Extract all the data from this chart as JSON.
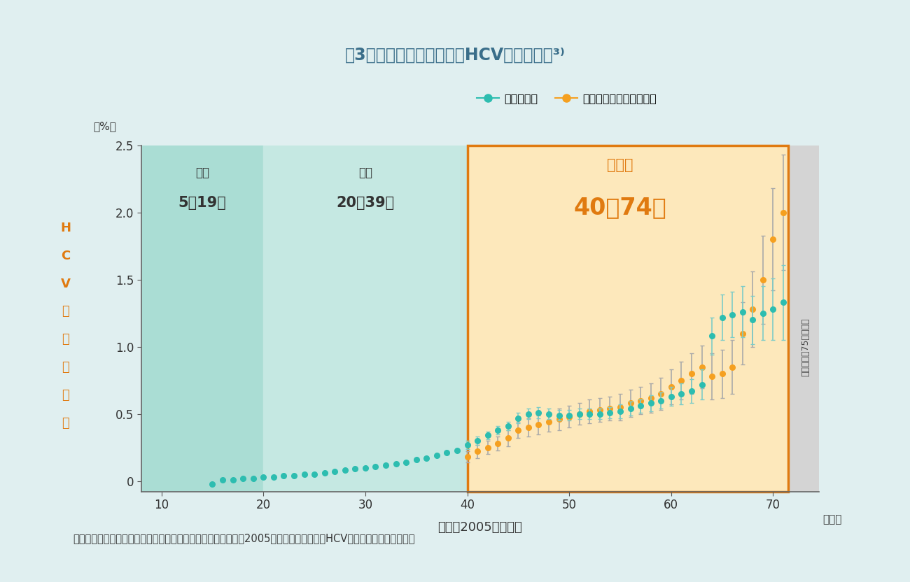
{
  "title": "図3：日本における年齢別HCV抗体陽性率³⁾",
  "xlabel": "年齢（2005年時点）",
  "ylabel_chars": [
    "H",
    "C",
    "V",
    "抗",
    "体",
    "陽",
    "性",
    "率"
  ],
  "ylabel_top": "（%）",
  "xlabel_right": "（歳）",
  "footnote": "方法：初回献血者の血液検査及び肝炎ウイルス検診結果から、2005年時点の各年齢別のHCV抗体陽性率を算出した。",
  "legend_label1": "初回献血者",
  "legend_label2": "肝炎ウイルス検診受診者",
  "background_color": "#e0eff0",
  "plot_bg_color": "#ffffff",
  "region1a_color": "#aaddd4",
  "region1b_color": "#c5e8e2",
  "region2_color": "#fde8bb",
  "region3_color": "#d4d4d4",
  "region1_label_top": "少年",
  "region1_label_bot": "5～19歳",
  "region2_label_top": "若年",
  "region2_label_bot": "20～39歳",
  "region3_label_top": "中高年",
  "region3_label_bot": "40～74歳",
  "region3_border_color": "#e07a10",
  "teal_color": "#2dbdb0",
  "orange_color": "#f5a020",
  "teal_err_color": "#7dccc8",
  "orange_err_color": "#aaaaaa",
  "teal_data_x": [
    15,
    16,
    17,
    18,
    19,
    20,
    21,
    22,
    23,
    24,
    25,
    26,
    27,
    28,
    29,
    30,
    31,
    32,
    33,
    34,
    35,
    36,
    37,
    38,
    39,
    40,
    41,
    42,
    43,
    44,
    45,
    46,
    47,
    48,
    49,
    50,
    51,
    52,
    53,
    54,
    55,
    56,
    57,
    58,
    59,
    60,
    61,
    62,
    63,
    64,
    65,
    66,
    67,
    68,
    69,
    70,
    71
  ],
  "teal_data_y": [
    -0.02,
    0.01,
    0.01,
    0.02,
    0.02,
    0.03,
    0.03,
    0.04,
    0.04,
    0.05,
    0.05,
    0.06,
    0.07,
    0.08,
    0.09,
    0.1,
    0.11,
    0.12,
    0.13,
    0.14,
    0.16,
    0.17,
    0.19,
    0.21,
    0.23,
    0.27,
    0.3,
    0.34,
    0.38,
    0.41,
    0.47,
    0.5,
    0.51,
    0.5,
    0.49,
    0.49,
    0.5,
    0.5,
    0.5,
    0.51,
    0.52,
    0.54,
    0.56,
    0.58,
    0.6,
    0.63,
    0.65,
    0.67,
    0.72,
    1.08,
    1.22,
    1.24,
    1.26,
    1.2,
    1.25,
    1.28,
    1.33
  ],
  "teal_err": [
    0.005,
    0.005,
    0.005,
    0.005,
    0.005,
    0.005,
    0.005,
    0.005,
    0.005,
    0.005,
    0.005,
    0.005,
    0.005,
    0.005,
    0.005,
    0.005,
    0.005,
    0.005,
    0.005,
    0.005,
    0.01,
    0.01,
    0.01,
    0.01,
    0.01,
    0.03,
    0.03,
    0.03,
    0.03,
    0.03,
    0.04,
    0.04,
    0.04,
    0.04,
    0.04,
    0.04,
    0.04,
    0.04,
    0.04,
    0.04,
    0.05,
    0.05,
    0.05,
    0.06,
    0.06,
    0.07,
    0.08,
    0.09,
    0.11,
    0.14,
    0.17,
    0.17,
    0.19,
    0.18,
    0.2,
    0.23,
    0.28
  ],
  "orange_data_x": [
    40,
    41,
    42,
    43,
    44,
    45,
    46,
    47,
    48,
    49,
    50,
    51,
    52,
    53,
    54,
    55,
    56,
    57,
    58,
    59,
    60,
    61,
    62,
    63,
    64,
    65,
    66,
    67,
    68,
    69,
    70,
    71
  ],
  "orange_data_y": [
    0.18,
    0.22,
    0.25,
    0.28,
    0.32,
    0.38,
    0.4,
    0.42,
    0.44,
    0.46,
    0.48,
    0.5,
    0.52,
    0.53,
    0.54,
    0.55,
    0.58,
    0.6,
    0.62,
    0.65,
    0.7,
    0.75,
    0.8,
    0.85,
    0.78,
    0.8,
    0.85,
    1.1,
    1.28,
    1.5,
    1.8,
    2.0
  ],
  "orange_err": [
    0.04,
    0.05,
    0.05,
    0.05,
    0.06,
    0.06,
    0.07,
    0.07,
    0.07,
    0.08,
    0.08,
    0.08,
    0.09,
    0.09,
    0.09,
    0.1,
    0.1,
    0.1,
    0.11,
    0.12,
    0.13,
    0.14,
    0.15,
    0.16,
    0.17,
    0.18,
    0.2,
    0.23,
    0.28,
    0.33,
    0.38,
    0.43
  ],
  "ylim": [
    -0.08,
    2.5
  ],
  "xlim": [
    8,
    74.5
  ],
  "xticks": [
    10,
    20,
    30,
    40,
    50,
    60,
    70
  ],
  "yticks": [
    0,
    0.5,
    1.0,
    1.5,
    2.0,
    2.5
  ],
  "title_color": "#3a6e8a",
  "ylabel_color": "#e07a10",
  "axis_label_color": "#333333"
}
